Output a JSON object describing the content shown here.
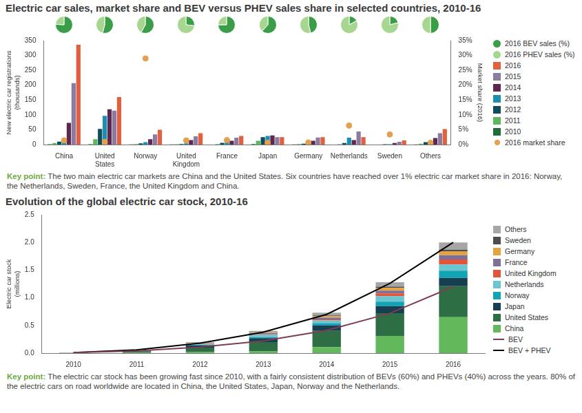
{
  "chart_data": [
    {
      "type": "bar",
      "title": "Electric car sales, market share and BEV versus PHEV sales share in selected countries, 2010-16",
      "y_label": "New electric car registrations (thousands)",
      "y2_label": "Market share (2016)",
      "categories": [
        "China",
        "United States",
        "Norway",
        "United Kingdom",
        "France",
        "Japan",
        "Germany",
        "Netherlands",
        "Sweden",
        "Others"
      ],
      "series": [
        {
          "name": "2016 BEV sales (%)",
          "type": "pie",
          "color": "#3b9d48",
          "values": [
            76,
            54,
            58,
            27,
            75,
            62,
            46,
            17,
            21,
            50
          ]
        },
        {
          "name": "2016 PHEV sales (%)",
          "type": "pie",
          "color": "#a7d690",
          "values": [
            24,
            46,
            42,
            73,
            25,
            38,
            54,
            83,
            79,
            50
          ]
        },
        {
          "name": "2010",
          "color": "#1f6b3a",
          "values": [
            1,
            1,
            0.4,
            0.4,
            0.2,
            2,
            0.5,
            0.1,
            0,
            0.5
          ]
        },
        {
          "name": "2011",
          "color": "#5cb85c",
          "values": [
            5,
            18,
            2,
            1,
            2,
            13,
            2,
            1,
            0.2,
            3
          ]
        },
        {
          "name": "2012",
          "color": "#0f4c5c",
          "values": [
            10,
            53,
            4,
            2,
            6,
            25,
            3,
            5,
            1,
            8
          ]
        },
        {
          "name": "2013",
          "color": "#1c8fb0",
          "values": [
            15,
            97,
            8,
            4,
            9,
            29,
            7,
            23,
            1,
            12
          ]
        },
        {
          "name": "2014",
          "color": "#5e2750",
          "values": [
            73,
            119,
            18,
            15,
            13,
            31,
            13,
            15,
            5,
            22
          ]
        },
        {
          "name": "2015",
          "color": "#8b7ba0",
          "values": [
            207,
            114,
            34,
            28,
            23,
            25,
            24,
            44,
            9,
            38
          ]
        },
        {
          "name": "2016",
          "color": "#e06040",
          "values": [
            336,
            160,
            50,
            38,
            29,
            25,
            25,
            25,
            14,
            52
          ]
        },
        {
          "name": "2016 market share",
          "type": "scatter",
          "marker": "circle",
          "axis": "y2",
          "color": "#e3a04f",
          "values": [
            1.4,
            0.9,
            29,
            1.4,
            1.5,
            0.6,
            0.7,
            6.4,
            3.4,
            0.6
          ]
        }
      ],
      "ylim": [
        0,
        350
      ],
      "yticks": [
        0,
        50,
        100,
        150,
        200,
        250,
        300,
        350
      ],
      "y2lim": [
        0,
        35
      ],
      "y2ticks": [
        {
          "value": 0,
          "label": "0%"
        },
        {
          "value": 5,
          "label": "5%"
        },
        {
          "value": 10,
          "label": "10%"
        },
        {
          "value": 15,
          "label": "15%"
        },
        {
          "value": 20,
          "label": "20%"
        },
        {
          "value": 25,
          "label": "25%"
        },
        {
          "value": 30,
          "label": "30%"
        },
        {
          "value": 35,
          "label": "35%"
        }
      ],
      "grid": false,
      "legend": "right",
      "note_label": "Key point:",
      "note": "The two main electric car markets are China and the United States. Six countries have reached over 1% electric car market share in 2016: Norway, the Netherlands, Sweden, France, the United Kingdom and China."
    },
    {
      "type": "bar",
      "title": "Evolution of the global electric car stock, 2010-16",
      "y_label": "Electric car stock (millions)",
      "categories": [
        "2010",
        "2011",
        "2012",
        "2013",
        "2014",
        "2015",
        "2016"
      ],
      "stacked": true,
      "series": [
        {
          "name": "China",
          "color": "#62b85a",
          "values": [
            0,
            0.01,
            0.02,
            0.03,
            0.11,
            0.31,
            0.65
          ]
        },
        {
          "name": "United States",
          "color": "#2d6e45",
          "values": [
            0,
            0.02,
            0.08,
            0.17,
            0.29,
            0.41,
            0.56
          ]
        },
        {
          "name": "Japan",
          "color": "#163f52",
          "values": [
            0,
            0.01,
            0.04,
            0.07,
            0.1,
            0.13,
            0.15
          ]
        },
        {
          "name": "Norway",
          "color": "#12a3b5",
          "values": [
            0,
            0,
            0.01,
            0.02,
            0.04,
            0.08,
            0.13
          ]
        },
        {
          "name": "Netherlands",
          "color": "#6cc5cf",
          "values": [
            0,
            0,
            0.01,
            0.04,
            0.05,
            0.1,
            0.11
          ]
        },
        {
          "name": "United Kingdom",
          "color": "#e2553a",
          "values": [
            0,
            0,
            0,
            0.01,
            0.02,
            0.05,
            0.09
          ]
        },
        {
          "name": "France",
          "color": "#7d6f95",
          "values": [
            0,
            0,
            0.01,
            0.02,
            0.03,
            0.05,
            0.08
          ]
        },
        {
          "name": "Germany",
          "color": "#e5a33f",
          "values": [
            0,
            0,
            0.01,
            0.01,
            0.03,
            0.05,
            0.07
          ]
        },
        {
          "name": "Sweden",
          "color": "#4d4d4d",
          "values": [
            0,
            0,
            0,
            0,
            0.01,
            0.02,
            0.03
          ]
        },
        {
          "name": "Others",
          "color": "#a6a6a6",
          "values": [
            0.01,
            0.01,
            0.02,
            0.03,
            0.05,
            0.08,
            0.13
          ]
        },
        {
          "name": "BEV",
          "type": "line",
          "color": "#7e3d52",
          "values": [
            0.01,
            0.04,
            0.11,
            0.22,
            0.41,
            0.72,
            1.2
          ]
        },
        {
          "name": "BEV + PHEV",
          "type": "line",
          "color": "#000000",
          "values": [
            0.01,
            0.06,
            0.18,
            0.38,
            0.7,
            1.26,
            2.0
          ]
        }
      ],
      "ylim": [
        0,
        2.5
      ],
      "yticks": [
        {
          "value": 0,
          "label": "0.0"
        },
        0.5,
        {
          "value": 1,
          "label": "1.0"
        },
        1.5,
        {
          "value": 2,
          "label": "2.0"
        },
        2.5
      ],
      "grid": false,
      "legend": "right",
      "note_label": "Key point:",
      "note": "The electric car stock has been growing fast since 2010, with a fairly consistent distribution of BEVs (60%) and PHEVs (40%) across the years. 80% of the electric cars on road worldwide are located in China, the United States, Japan, Norway and the Netherlands."
    }
  ]
}
